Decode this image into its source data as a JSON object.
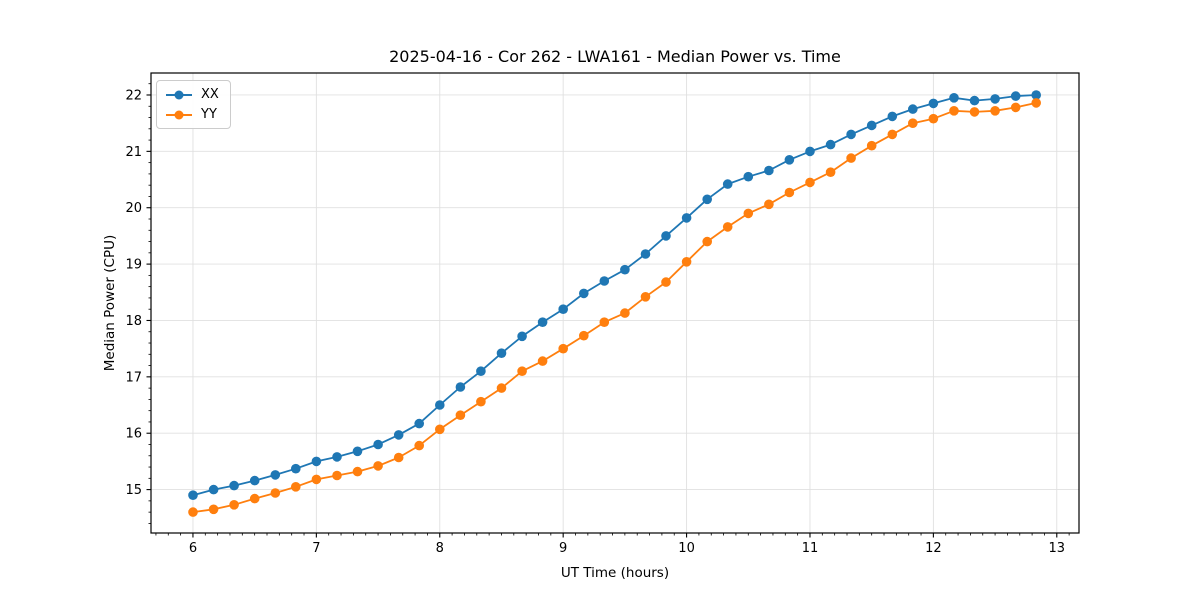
{
  "chart_data": {
    "type": "line",
    "title": "2025-04-16 - Cor 262 - LWA161 - Median Power vs. Time",
    "xlabel": "UT Time (hours)",
    "ylabel": "Median Power (CPU)",
    "xlim": [
      5.66,
      13.18
    ],
    "ylim": [
      14.23,
      22.39
    ],
    "xticks": [
      6,
      7,
      8,
      9,
      10,
      11,
      12,
      13
    ],
    "yticks": [
      15,
      16,
      17,
      18,
      19,
      20,
      21,
      22
    ],
    "minor_step_x": 0.1,
    "minor_step_y": 0.2,
    "grid": true,
    "grid_color": "#e0e0e0",
    "spine_color": "#000000",
    "background": "#ffffff",
    "legend_position": "upper left",
    "x": [
      6.0,
      6.167,
      6.333,
      6.5,
      6.667,
      6.833,
      7.0,
      7.167,
      7.333,
      7.5,
      7.667,
      7.833,
      8.0,
      8.167,
      8.333,
      8.5,
      8.667,
      8.833,
      9.0,
      9.167,
      9.333,
      9.5,
      9.667,
      9.833,
      10.0,
      10.167,
      10.333,
      10.5,
      10.667,
      10.833,
      11.0,
      11.167,
      11.333,
      11.5,
      11.667,
      11.833,
      12.0,
      12.167,
      12.333,
      12.5,
      12.667,
      12.833
    ],
    "series": [
      {
        "name": "XX",
        "color": "#1f77b4",
        "marker": "circle",
        "values": [
          14.9,
          15.0,
          15.07,
          15.16,
          15.26,
          15.37,
          15.5,
          15.58,
          15.68,
          15.8,
          15.97,
          16.17,
          16.5,
          16.82,
          17.1,
          17.42,
          17.72,
          17.97,
          18.2,
          18.48,
          18.7,
          18.9,
          19.18,
          19.5,
          19.82,
          20.15,
          20.42,
          20.55,
          20.66,
          20.85,
          21.0,
          21.12,
          21.3,
          21.46,
          21.62,
          21.75,
          21.85,
          21.95,
          21.9,
          21.93,
          21.98,
          22.0
        ]
      },
      {
        "name": "YY",
        "color": "#ff7f0e",
        "marker": "circle",
        "values": [
          14.6,
          14.65,
          14.73,
          14.84,
          14.94,
          15.05,
          15.18,
          15.25,
          15.32,
          15.42,
          15.57,
          15.78,
          16.07,
          16.32,
          16.56,
          16.8,
          17.1,
          17.28,
          17.5,
          17.73,
          17.97,
          18.13,
          18.42,
          18.68,
          19.04,
          19.4,
          19.66,
          19.9,
          20.06,
          20.27,
          20.45,
          20.63,
          20.88,
          21.1,
          21.3,
          21.5,
          21.58,
          21.72,
          21.7,
          21.72,
          21.78,
          21.86
        ]
      }
    ]
  }
}
